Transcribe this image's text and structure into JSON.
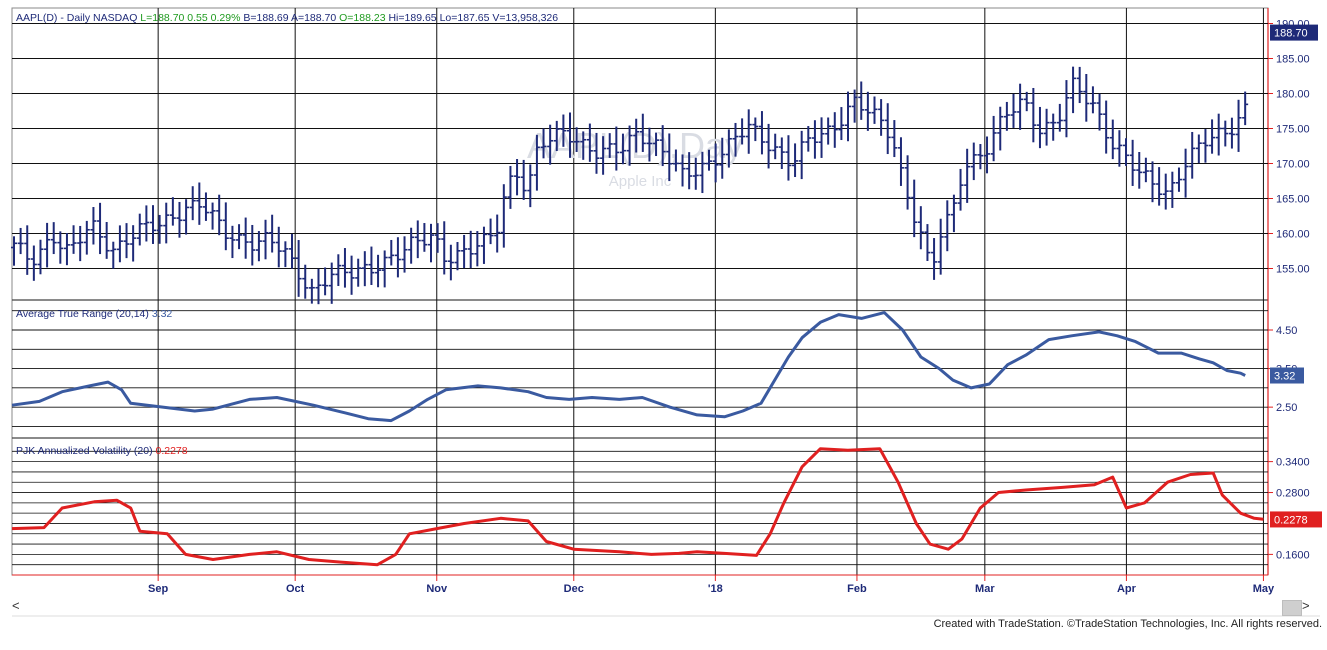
{
  "chart_data": [
    {
      "type": "ohlc",
      "title": "AAPL(D) - Daily  NASDAQ",
      "quote": {
        "last": "L=188.70",
        "change": "0.55",
        "pct": "0.29%",
        "bid": "B=188.69",
        "ask": "A=188.70",
        "open": "O=188.23",
        "high": "Hi=189.65",
        "low": "Lo=187.65",
        "volume": "V=13,958,326"
      },
      "watermark": {
        "symbol": "AAPL(D),Day",
        "name": "Apple Inc"
      },
      "last_label": "188.70",
      "ylim": [
        150.5,
        190.5
      ],
      "yticks": [
        "155.00",
        "160.00",
        "165.00",
        "170.00",
        "175.00",
        "180.00",
        "185.00",
        "190.00"
      ],
      "n_bars": 187,
      "anchors": [
        [
          0,
          158
        ],
        [
          3,
          156
        ],
        [
          7,
          160
        ],
        [
          10,
          157
        ],
        [
          14,
          161
        ],
        [
          18,
          158
        ],
        [
          22,
          160
        ],
        [
          26,
          161
        ],
        [
          31,
          164
        ],
        [
          34,
          164
        ],
        [
          38,
          160
        ],
        [
          43,
          159
        ],
        [
          46,
          159
        ],
        [
          49,
          157
        ],
        [
          51,
          155
        ],
        [
          54,
          152
        ],
        [
          57,
          154
        ],
        [
          61,
          154
        ],
        [
          66,
          156
        ],
        [
          70,
          157
        ],
        [
          76,
          160
        ],
        [
          78,
          157
        ],
        [
          82,
          157
        ],
        [
          86,
          159
        ],
        [
          88,
          162
        ],
        [
          89,
          167
        ],
        [
          91,
          169
        ],
        [
          93,
          166
        ],
        [
          95,
          172
        ],
        [
          100,
          175
        ],
        [
          103,
          173
        ],
        [
          106,
          171
        ],
        [
          110,
          172
        ],
        [
          113,
          175
        ],
        [
          117,
          172
        ],
        [
          121,
          168
        ],
        [
          125,
          170
        ],
        [
          129,
          172
        ],
        [
          133,
          175
        ],
        [
          137,
          173
        ],
        [
          141,
          170
        ],
        [
          144,
          173
        ],
        [
          148,
          175
        ],
        [
          152,
          179
        ],
        [
          155,
          177
        ],
        [
          159,
          174
        ],
        [
          161,
          168
        ],
        [
          163,
          163
        ],
        [
          165,
          158
        ],
        [
          166,
          154
        ],
        [
          168,
          160
        ],
        [
          170,
          163
        ],
        [
          172,
          170
        ],
        [
          176,
          172
        ],
        [
          180,
          177
        ],
        [
          183,
          179
        ],
        [
          186,
          175
        ],
        [
          189,
          176
        ],
        [
          192,
          181
        ],
        [
          196,
          178
        ],
        [
          199,
          173
        ],
        [
          202,
          170
        ],
        [
          204,
          168
        ],
        [
          207,
          167
        ],
        [
          209,
          166
        ],
        [
          212,
          170
        ],
        [
          216,
          173
        ],
        [
          220,
          175
        ],
        [
          223,
          178
        ]
      ],
      "bars_x": [
        0,
        185
      ],
      "gaps": [
        {
          "x": 191,
          "y_from": 165,
          "y_to": 172
        },
        {
          "x": 212,
          "y_from": 175,
          "y_to": 167
        }
      ]
    },
    {
      "type": "line",
      "title": "Average True Range (20,14)",
      "value_label": "3.32",
      "series_color": "#3a5aa0",
      "ylim": [
        1.7,
        5.2
      ],
      "yticks": [
        "2.50",
        "3.50",
        "4.50"
      ],
      "last_label": "3.32",
      "points": [
        [
          0,
          2.55
        ],
        [
          6,
          2.65
        ],
        [
          11,
          2.9
        ],
        [
          17,
          3.05
        ],
        [
          21,
          3.15
        ],
        [
          24,
          2.95
        ],
        [
          26,
          2.6
        ],
        [
          33,
          2.5
        ],
        [
          40,
          2.4
        ],
        [
          44,
          2.45
        ],
        [
          52,
          2.7
        ],
        [
          58,
          2.75
        ],
        [
          66,
          2.55
        ],
        [
          73,
          2.35
        ],
        [
          78,
          2.2
        ],
        [
          83,
          2.15
        ],
        [
          87,
          2.4
        ],
        [
          91,
          2.7
        ],
        [
          95,
          2.95
        ],
        [
          102,
          3.05
        ],
        [
          107,
          3.0
        ],
        [
          113,
          2.9
        ],
        [
          117,
          2.75
        ],
        [
          122,
          2.7
        ],
        [
          127,
          2.75
        ],
        [
          133,
          2.7
        ],
        [
          138,
          2.75
        ],
        [
          144,
          2.5
        ],
        [
          150,
          2.3
        ],
        [
          156,
          2.25
        ],
        [
          160,
          2.4
        ],
        [
          164,
          2.6
        ],
        [
          167,
          3.2
        ],
        [
          170,
          3.8
        ],
        [
          173,
          4.3
        ],
        [
          177,
          4.7
        ],
        [
          181,
          4.9
        ],
        [
          186,
          4.8
        ],
        [
          191,
          4.95
        ],
        [
          195,
          4.5
        ],
        [
          199,
          3.8
        ],
        [
          203,
          3.5
        ],
        [
          206,
          3.2
        ],
        [
          210,
          3.0
        ],
        [
          214,
          3.1
        ],
        [
          218,
          3.6
        ],
        [
          222,
          3.85
        ],
        [
          227,
          4.25
        ],
        [
          232,
          4.35
        ],
        [
          238,
          4.45
        ],
        [
          242,
          4.35
        ],
        [
          246,
          4.2
        ],
        [
          251,
          3.9
        ],
        [
          256,
          3.9
        ],
        [
          260,
          3.75
        ],
        [
          263,
          3.65
        ],
        [
          266,
          3.45
        ],
        [
          269,
          3.38
        ],
        [
          270,
          3.32
        ]
      ]
    },
    {
      "type": "line",
      "title": "PJK Annualized Volatility (20)",
      "value_label": "0.2278",
      "series_color": "#e02020",
      "ylim": [
        0.12,
        0.38
      ],
      "yticks": [
        "0.1600",
        "0.2800",
        "0.3400"
      ],
      "last_label": "0.2278",
      "points": [
        [
          0,
          0.21
        ],
        [
          7,
          0.212
        ],
        [
          11,
          0.25
        ],
        [
          18,
          0.262
        ],
        [
          23,
          0.265
        ],
        [
          26,
          0.25
        ],
        [
          28,
          0.205
        ],
        [
          34,
          0.2
        ],
        [
          38,
          0.16
        ],
        [
          44,
          0.15
        ],
        [
          52,
          0.16
        ],
        [
          58,
          0.165
        ],
        [
          65,
          0.15
        ],
        [
          72,
          0.145
        ],
        [
          80,
          0.14
        ],
        [
          84,
          0.16
        ],
        [
          87,
          0.2
        ],
        [
          93,
          0.21
        ],
        [
          99,
          0.22
        ],
        [
          107,
          0.23
        ],
        [
          113,
          0.225
        ],
        [
          117,
          0.185
        ],
        [
          123,
          0.17
        ],
        [
          133,
          0.165
        ],
        [
          140,
          0.16
        ],
        [
          146,
          0.162
        ],
        [
          150,
          0.165
        ],
        [
          156,
          0.162
        ],
        [
          163,
          0.158
        ],
        [
          166,
          0.2
        ],
        [
          169,
          0.26
        ],
        [
          173,
          0.33
        ],
        [
          177,
          0.365
        ],
        [
          183,
          0.362
        ],
        [
          190,
          0.365
        ],
        [
          194,
          0.3
        ],
        [
          198,
          0.22
        ],
        [
          201,
          0.18
        ],
        [
          205,
          0.17
        ],
        [
          208,
          0.19
        ],
        [
          212,
          0.25
        ],
        [
          216,
          0.28
        ],
        [
          222,
          0.285
        ],
        [
          230,
          0.29
        ],
        [
          237,
          0.295
        ],
        [
          241,
          0.31
        ],
        [
          244,
          0.25
        ],
        [
          248,
          0.26
        ],
        [
          253,
          0.3
        ],
        [
          258,
          0.315
        ],
        [
          263,
          0.318
        ],
        [
          265,
          0.275
        ],
        [
          269,
          0.24
        ],
        [
          272,
          0.23
        ],
        [
          274,
          0.228
        ]
      ]
    }
  ],
  "x_axis": {
    "total_days": 275,
    "month_labels": [
      {
        "label": "Sep",
        "day": 32
      },
      {
        "label": "Oct",
        "day": 62
      },
      {
        "label": "Nov",
        "day": 93
      },
      {
        "label": "Dec",
        "day": 123
      },
      {
        "label": "'18",
        "day": 154
      },
      {
        "label": "Feb",
        "day": 185
      },
      {
        "label": "Mar",
        "day": 213
      },
      {
        "label": "Apr",
        "day": 244
      },
      {
        "label": "May",
        "day": 274
      }
    ]
  },
  "colors": {
    "price": "#1e2a78",
    "atr": "#3a5aa0",
    "vol": "#e02020",
    "axis": "#e02020",
    "grid": "#111111",
    "quote_green": "#1f9a1f",
    "title": "#1e2a78"
  },
  "footer": {
    "text": "Created with TradeStation. ©TradeStation Technologies, Inc. All rights reserved."
  },
  "scroll": {
    "left": "<",
    "right": ">"
  }
}
